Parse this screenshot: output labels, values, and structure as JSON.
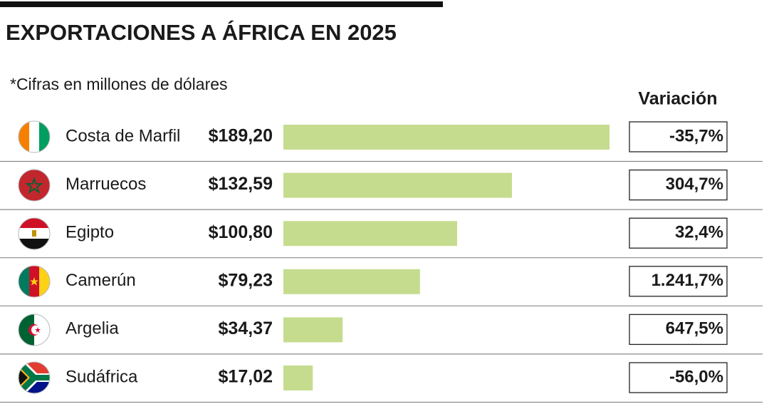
{
  "chart_data": {
    "type": "bar",
    "orientation": "horizontal",
    "title": "EXPORTACIONES A ÁFRICA EN 2025",
    "subtitle": "*Cifras en millones de dólares",
    "categories": [
      "Costa de Marfil",
      "Marruecos",
      "Egipto",
      "Camerún",
      "Argelia",
      "Sudáfrica"
    ],
    "values": [
      189.2,
      132.59,
      100.8,
      79.23,
      34.37,
      17.02
    ],
    "value_labels": [
      "$189,20",
      "$132,59",
      "$100,80",
      "$79,23",
      "$34,37",
      "$17,02"
    ],
    "color": "#c5dc8e",
    "xlim": [
      0,
      189.2
    ],
    "variation": {
      "title": "Variación",
      "values": [
        -35.7,
        304.7,
        32.4,
        1241.7,
        647.5,
        -56.0
      ],
      "value_labels": [
        "-35,7%",
        "304,7%",
        "32,4%",
        "1.241,7%",
        "647,5%",
        "-56,0%"
      ]
    }
  }
}
